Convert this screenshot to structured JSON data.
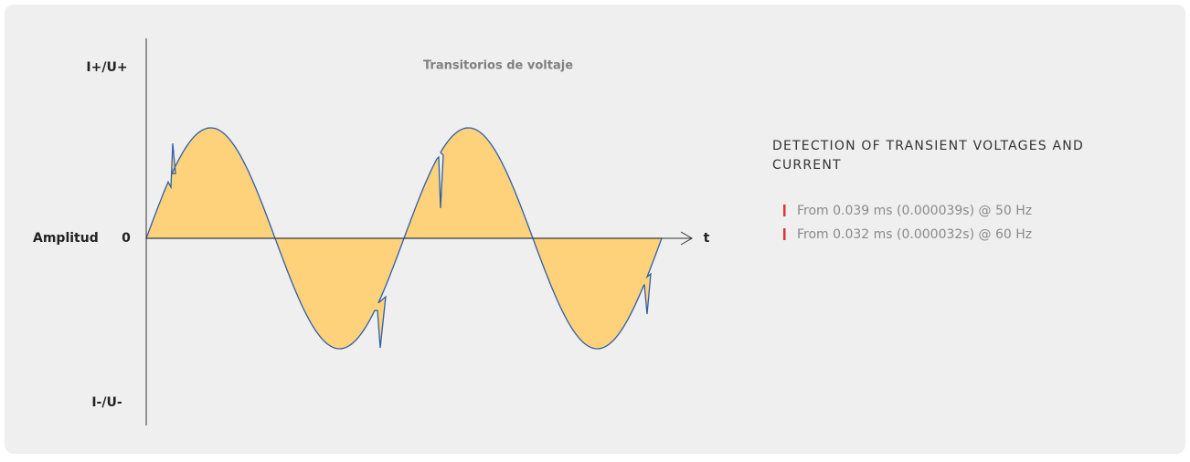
{
  "diagram": {
    "title": "Transitorios de voltaje",
    "y_top_label": "I+/U+",
    "y_bottom_label": "I-/U-",
    "amplitude_label": "Amplitud",
    "zero_label": "0",
    "x_label": "t"
  },
  "info": {
    "heading_lines": [
      "DETECTION OF TRANSIENT VOLTAGES AND",
      "CURRENT"
    ],
    "items": [
      "From 0.039 ms (0.000039s) @ 50 Hz",
      "From 0.032 ms (0.000032s) @ 60 Hz"
    ]
  }
}
